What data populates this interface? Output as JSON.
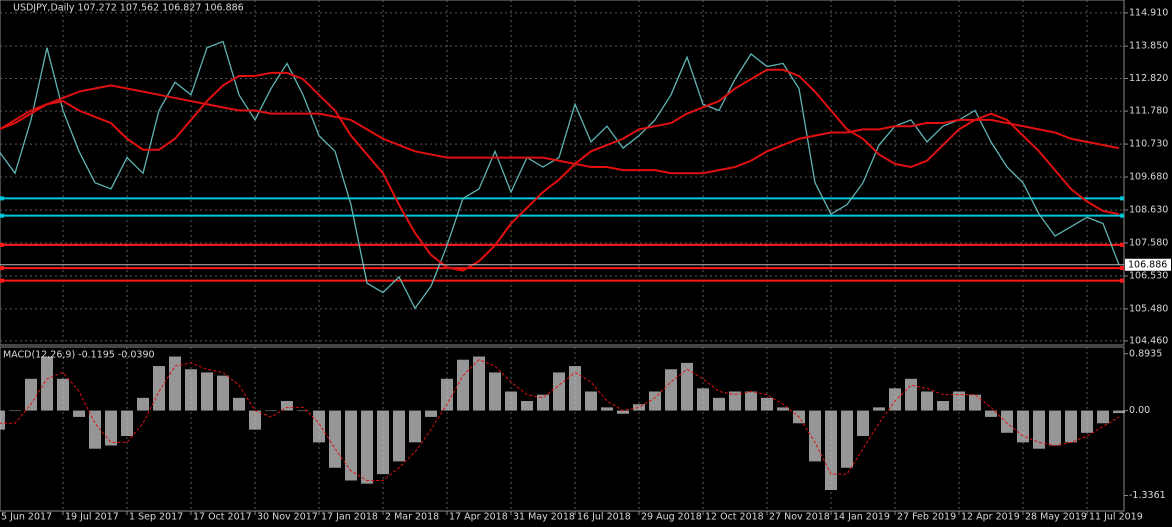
{
  "chart_data": {
    "type": "line",
    "title": "USDJPY,Daily  107.272 107.562 106.827 106.886",
    "categories": [
      "5 Jun 2017",
      null,
      null,
      null,
      "19 Jul 2017",
      null,
      null,
      null,
      "1 Sep 2017",
      null,
      null,
      null,
      "17 Oct 2017",
      null,
      null,
      null,
      "30 Nov 2017",
      null,
      null,
      null,
      "17 Jan 2018",
      null,
      null,
      null,
      "2 Mar 2018",
      null,
      null,
      null,
      "17 Apr 2018",
      null,
      null,
      null,
      "31 May 2018",
      null,
      null,
      null,
      "16 Jul 2018",
      null,
      null,
      null,
      "29 Aug 2018",
      null,
      null,
      null,
      "12 Oct 2018",
      null,
      null,
      null,
      "27 Nov 2018",
      null,
      null,
      null,
      "14 Jan 2019",
      null,
      null,
      null,
      "27 Feb 2019",
      null,
      null,
      null,
      "12 Apr 2019",
      null,
      null,
      null,
      "28 May 2019",
      null,
      null,
      null,
      "11 Jul 2019",
      null,
      null
    ],
    "series": [
      {
        "color": "#5fb3b3",
        "values": [
          110.5,
          109.8,
          111.5,
          113.8,
          111.8,
          110.5,
          109.5,
          109.3,
          110.3,
          109.8,
          111.8,
          112.7,
          112.3,
          113.8,
          114.0,
          112.3,
          111.5,
          112.5,
          113.3,
          112.3,
          111.0,
          110.5,
          108.8,
          106.3,
          106.0,
          106.5,
          105.5,
          106.2,
          107.5,
          109.0,
          109.3,
          110.5,
          109.2,
          110.3,
          110.0,
          110.3,
          112.0,
          110.8,
          111.3,
          110.6,
          111.0,
          111.5,
          112.3,
          113.5,
          112.0,
          111.8,
          112.8,
          113.6,
          113.2,
          113.3,
          112.5,
          109.5,
          108.5,
          108.8,
          109.5,
          110.7,
          111.3,
          111.5,
          110.8,
          111.3,
          111.5,
          111.8,
          110.8,
          110.0,
          109.5,
          108.5,
          107.8,
          108.1,
          108.4,
          108.2,
          106.886
        ]
      },
      {
        "color": "#e01010",
        "values": [
          111.18,
          111.5,
          111.8,
          112.0,
          112.1,
          111.8,
          111.6,
          111.4,
          110.9,
          110.55,
          110.55,
          110.9,
          111.5,
          112.1,
          112.6,
          112.9,
          112.9,
          113.0,
          113.0,
          112.8,
          112.3,
          111.8,
          111.0,
          110.4,
          109.8,
          108.8,
          107.9,
          107.2,
          106.8,
          106.7,
          107.0,
          107.5,
          108.2,
          108.7,
          109.2,
          109.6,
          110.1,
          110.5,
          110.7,
          110.9,
          111.2,
          111.3,
          111.4,
          111.7,
          111.9,
          112.1,
          112.5,
          112.8,
          113.1,
          113.1,
          112.9,
          112.4,
          111.8,
          111.2,
          110.9,
          110.4,
          110.1,
          110.0,
          110.2,
          110.7,
          111.2,
          111.5,
          111.7,
          111.5,
          111.0,
          110.5,
          109.9,
          109.3,
          108.9,
          108.6,
          108.5
        ]
      },
      {
        "color": "#e01010",
        "values": [
          111.2,
          111.4,
          111.7,
          112.0,
          112.2,
          112.4,
          112.5,
          112.6,
          112.5,
          112.4,
          112.3,
          112.2,
          112.1,
          112.0,
          111.9,
          111.8,
          111.8,
          111.7,
          111.7,
          111.7,
          111.7,
          111.6,
          111.5,
          111.2,
          110.9,
          110.7,
          110.5,
          110.4,
          110.3,
          110.3,
          110.3,
          110.3,
          110.3,
          110.3,
          110.3,
          110.2,
          110.1,
          110.0,
          110.0,
          109.9,
          109.9,
          109.9,
          109.8,
          109.8,
          109.8,
          109.9,
          110.0,
          110.2,
          110.5,
          110.7,
          110.9,
          111.0,
          111.1,
          111.1,
          111.2,
          111.2,
          111.3,
          111.3,
          111.4,
          111.4,
          111.5,
          111.5,
          111.5,
          111.4,
          111.3,
          111.2,
          111.1,
          110.9,
          110.8,
          110.7,
          110.6
        ]
      }
    ],
    "ylim": [
      104.33,
      115.32
    ],
    "yticks": [
      {
        "value": 114.91,
        "label": "114.910"
      },
      {
        "value": 113.85,
        "label": "113.850"
      },
      {
        "value": 112.82,
        "label": "112.820"
      },
      {
        "value": 111.78,
        "label": "111.780"
      },
      {
        "value": 110.73,
        "label": "110.730"
      },
      {
        "value": 109.68,
        "label": "109.680"
      },
      {
        "value": 108.63,
        "label": "108.630"
      },
      {
        "value": 107.58,
        "label": "107.580"
      },
      {
        "value": 106.53,
        "label": "106.530"
      },
      {
        "value": 105.48,
        "label": "105.480"
      },
      {
        "value": 104.46,
        "label": "104.460"
      }
    ],
    "grid": true,
    "levels": [
      {
        "value": 109.0,
        "color": "#00c8dc"
      },
      {
        "value": 108.45,
        "color": "#00c8dc"
      },
      {
        "value": 107.52,
        "color": "#ff1a1a"
      },
      {
        "value": 106.78,
        "color": "#ff1a1a"
      },
      {
        "value": 106.38,
        "color": "#ff1a1a"
      }
    ],
    "last_price": 106.886,
    "macd": {
      "label": "MACD(12,26,9) -0.1195 -0.0390",
      "color": "#c8c8c8",
      "signal_color": "#e01010",
      "histogram": [
        -0.3,
        0.0,
        0.5,
        0.85,
        0.5,
        -0.1,
        -0.6,
        -0.55,
        -0.4,
        0.2,
        0.7,
        0.85,
        0.65,
        0.6,
        0.55,
        0.2,
        -0.3,
        0.0,
        0.15,
        0.0,
        -0.5,
        -0.9,
        -1.1,
        -1.15,
        -1.0,
        -0.8,
        -0.5,
        -0.1,
        0.5,
        0.8,
        0.85,
        0.6,
        0.3,
        0.15,
        0.25,
        0.6,
        0.7,
        0.3,
        0.05,
        -0.05,
        0.1,
        0.3,
        0.65,
        0.75,
        0.35,
        0.2,
        0.3,
        0.3,
        0.2,
        0.05,
        -0.2,
        -0.8,
        -1.25,
        -0.9,
        -0.4,
        0.05,
        0.35,
        0.5,
        0.3,
        0.15,
        0.3,
        0.25,
        -0.1,
        -0.35,
        -0.5,
        -0.6,
        -0.55,
        -0.5,
        -0.35,
        -0.2,
        -0.04
      ],
      "signal": [
        -0.2,
        -0.2,
        0.1,
        0.5,
        0.6,
        0.3,
        -0.2,
        -0.5,
        -0.5,
        -0.2,
        0.3,
        0.7,
        0.75,
        0.65,
        0.6,
        0.4,
        0.0,
        -0.1,
        0.05,
        0.05,
        -0.2,
        -0.6,
        -0.95,
        -1.1,
        -1.1,
        -0.9,
        -0.65,
        -0.3,
        0.1,
        0.55,
        0.8,
        0.7,
        0.45,
        0.25,
        0.2,
        0.4,
        0.6,
        0.45,
        0.15,
        0.0,
        0.05,
        0.2,
        0.45,
        0.65,
        0.5,
        0.3,
        0.25,
        0.3,
        0.25,
        0.1,
        -0.1,
        -0.5,
        -1.0,
        -1.0,
        -0.6,
        -0.2,
        0.15,
        0.4,
        0.35,
        0.25,
        0.25,
        0.25,
        0.05,
        -0.2,
        -0.4,
        -0.5,
        -0.55,
        -0.5,
        -0.4,
        -0.25,
        -0.1
      ],
      "ylim": [
        -1.58,
        1.0
      ],
      "yticks": [
        0.8935,
        {
          "value": 0,
          "label": "0.00"
        },
        -1.3361
      ]
    }
  }
}
